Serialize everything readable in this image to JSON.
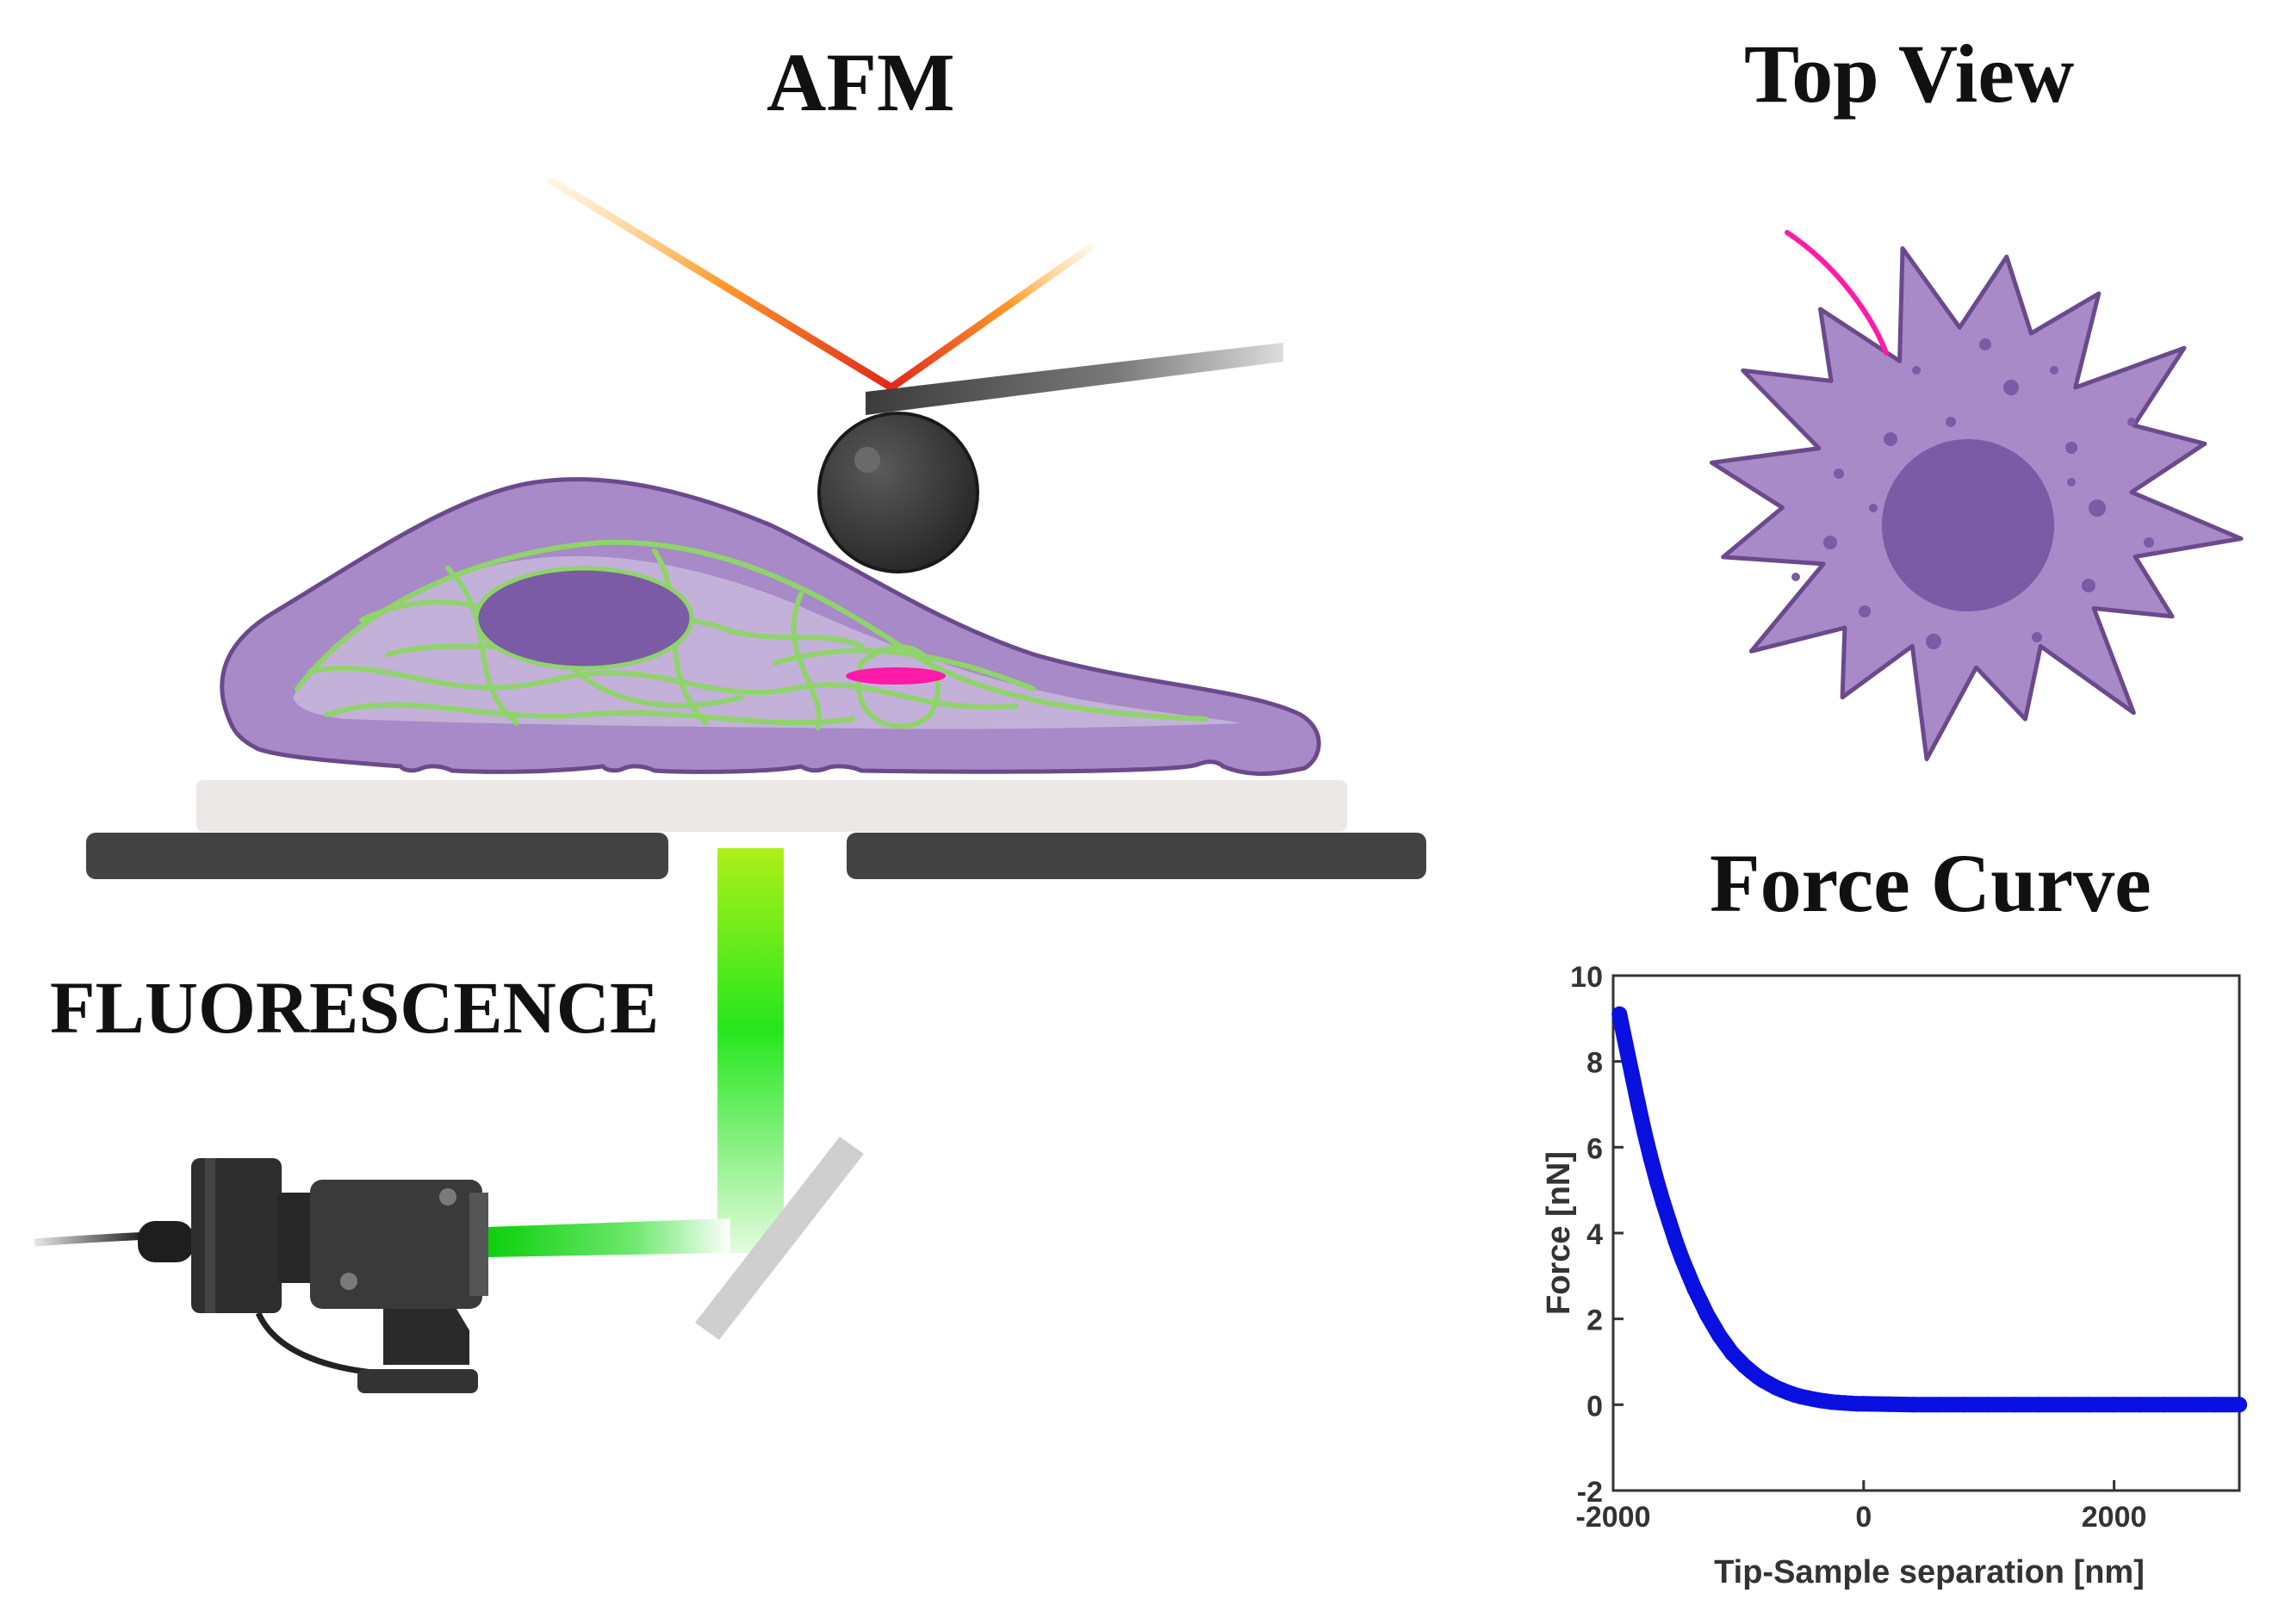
{
  "labels": {
    "afm": "AFM",
    "top_view": "Top View",
    "force_curve": "Force Curve",
    "fluorescence": "FLUORESCENCE"
  },
  "colors": {
    "cell_fill": "#a78ac7",
    "cell_stroke": "#6b4a8c",
    "nucleus": "#7b5aa6",
    "cytoskeleton": "#8fd46a",
    "probe": "#3c3c3c",
    "laser": "#ff7a1a",
    "light_path": "#22dd22",
    "highlight": "#ff1aa8",
    "curve": "#0a10e0"
  },
  "chart_data": {
    "type": "scatter",
    "title": "",
    "xlabel": "Tip-Sample separation [nm]",
    "ylabel": "Force [nN]",
    "xlim": [
      -2000,
      3000
    ],
    "ylim": [
      -2,
      10
    ],
    "xticks": [
      -2000,
      0,
      2000
    ],
    "yticks": [
      -2,
      0,
      2,
      4,
      6,
      8,
      10
    ],
    "grid": false,
    "series": [
      {
        "points": [
          [
            -1950,
            9.1
          ],
          [
            -1900,
            8.4
          ],
          [
            -1850,
            7.7
          ],
          [
            -1800,
            7.0
          ],
          [
            -1750,
            6.35
          ],
          [
            -1700,
            5.75
          ],
          [
            -1650,
            5.2
          ],
          [
            -1600,
            4.7
          ],
          [
            -1550,
            4.25
          ],
          [
            -1500,
            3.8
          ],
          [
            -1450,
            3.4
          ],
          [
            -1400,
            3.05
          ],
          [
            -1350,
            2.7
          ],
          [
            -1300,
            2.4
          ],
          [
            -1250,
            2.1
          ],
          [
            -1200,
            1.85
          ],
          [
            -1150,
            1.6
          ],
          [
            -1100,
            1.4
          ],
          [
            -1050,
            1.2
          ],
          [
            -1000,
            1.05
          ],
          [
            -950,
            0.9
          ],
          [
            -900,
            0.78
          ],
          [
            -850,
            0.66
          ],
          [
            -800,
            0.56
          ],
          [
            -750,
            0.48
          ],
          [
            -700,
            0.4
          ],
          [
            -650,
            0.34
          ],
          [
            -600,
            0.28
          ],
          [
            -550,
            0.23
          ],
          [
            -500,
            0.19
          ],
          [
            -450,
            0.16
          ],
          [
            -400,
            0.13
          ],
          [
            -350,
            0.1
          ],
          [
            -300,
            0.08
          ],
          [
            -250,
            0.06
          ],
          [
            -200,
            0.05
          ],
          [
            -150,
            0.04
          ],
          [
            -100,
            0.03
          ],
          [
            -50,
            0.02
          ],
          [
            0,
            0.02
          ],
          [
            200,
            0.01
          ],
          [
            400,
            0.0
          ],
          [
            600,
            0.0
          ],
          [
            800,
            0.0
          ],
          [
            1000,
            0.0
          ],
          [
            1200,
            0.0
          ],
          [
            1400,
            0.0
          ],
          [
            1600,
            0.0
          ],
          [
            1800,
            0.0
          ],
          [
            2000,
            0.0
          ],
          [
            2200,
            0.0
          ],
          [
            2400,
            0.0
          ],
          [
            2600,
            0.0
          ],
          [
            2800,
            0.0
          ],
          [
            3000,
            0.0
          ]
        ]
      }
    ]
  }
}
